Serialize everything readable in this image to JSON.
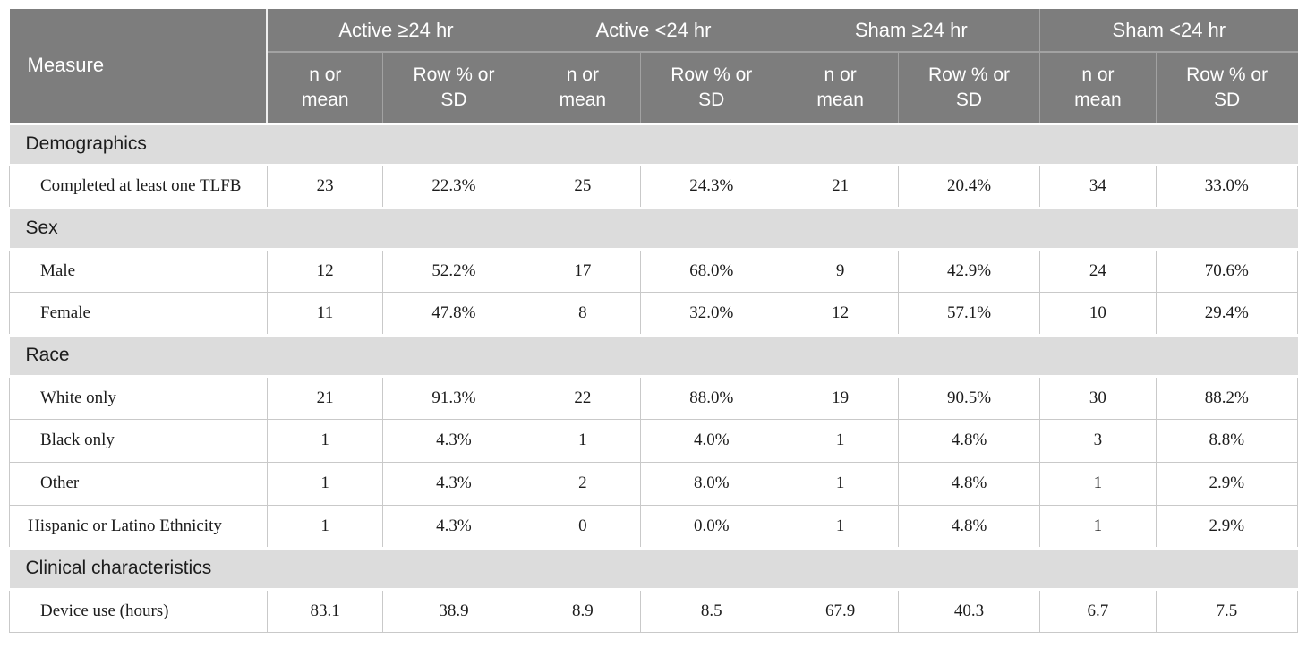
{
  "colors": {
    "header_bg": "#7d7d7d",
    "header_text": "#ffffff",
    "header_border": "#a2a2a2",
    "section_bg": "#dcdcdc",
    "body_border": "#c9c9c9",
    "text": "#1c1c1c"
  },
  "header": {
    "measure_label": "Measure",
    "groups": [
      "Active ≥24 hr",
      "Active <24 hr",
      "Sham ≥24 hr",
      "Sham <24 hr"
    ],
    "subcolumns": [
      "n or\nmean",
      "Row % or\nSD"
    ]
  },
  "rows": [
    {
      "type": "section",
      "label": "Demographics"
    },
    {
      "type": "data",
      "label": "Completed at least one TLFB",
      "indent": true,
      "values": [
        "23",
        "22.3%",
        "25",
        "24.3%",
        "21",
        "20.4%",
        "34",
        "33.0%"
      ]
    },
    {
      "type": "section",
      "label": "Sex"
    },
    {
      "type": "data",
      "label": "Male",
      "indent": true,
      "values": [
        "12",
        "52.2%",
        "17",
        "68.0%",
        "9",
        "42.9%",
        "24",
        "70.6%"
      ]
    },
    {
      "type": "data",
      "label": "Female",
      "indent": true,
      "values": [
        "11",
        "47.8%",
        "8",
        "32.0%",
        "12",
        "57.1%",
        "10",
        "29.4%"
      ]
    },
    {
      "type": "section",
      "label": "Race"
    },
    {
      "type": "data",
      "label": "White only",
      "indent": true,
      "values": [
        "21",
        "91.3%",
        "22",
        "88.0%",
        "19",
        "90.5%",
        "30",
        "88.2%"
      ]
    },
    {
      "type": "data",
      "label": "Black only",
      "indent": true,
      "values": [
        "1",
        "4.3%",
        "1",
        "4.0%",
        "1",
        "4.8%",
        "3",
        "8.8%"
      ]
    },
    {
      "type": "data",
      "label": "Other",
      "indent": true,
      "values": [
        "1",
        "4.3%",
        "2",
        "8.0%",
        "1",
        "4.8%",
        "1",
        "2.9%"
      ]
    },
    {
      "type": "data",
      "label": "Hispanic or Latino Ethnicity",
      "indent": false,
      "values": [
        "1",
        "4.3%",
        "0",
        "0.0%",
        "1",
        "4.8%",
        "1",
        "2.9%"
      ]
    },
    {
      "type": "section",
      "label": "Clinical characteristics"
    },
    {
      "type": "data",
      "label": "Device use (hours)",
      "indent": true,
      "values": [
        "83.1",
        "38.9",
        "8.9",
        "8.5",
        "67.9",
        "40.3",
        "6.7",
        "7.5"
      ]
    }
  ]
}
